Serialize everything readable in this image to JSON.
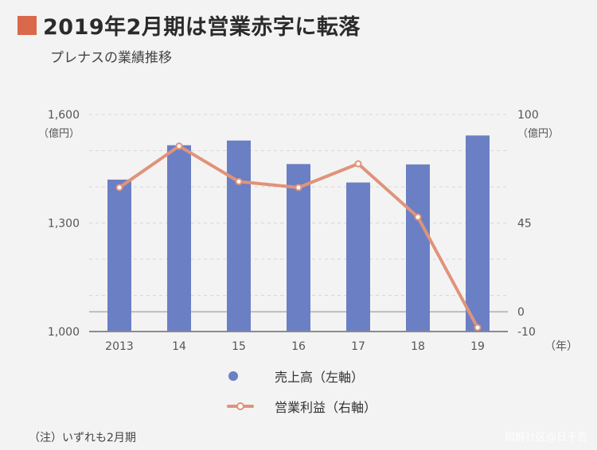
{
  "header": {
    "title": "2019年2月期は営業赤字に転落",
    "subtitle": "プレナスの業績推移",
    "accent_color": "#d9694a"
  },
  "note": "（注）いずれも2月期",
  "credit": "図解社区@日千百",
  "colors": {
    "bar": "#6b7fc4",
    "line": "#e0937a",
    "grid": "#d7d7d7",
    "zero_line": "#bdbdbd"
  },
  "chart_data": {
    "type": "bar+line",
    "categories": [
      "2013",
      "14",
      "15",
      "16",
      "17",
      "18",
      "19"
    ],
    "x_unit": "（年）",
    "series": [
      {
        "name": "売上高（左軸）",
        "axis": "left",
        "kind": "bar",
        "values": [
          1420,
          1515,
          1528,
          1463,
          1412,
          1462,
          1542
        ]
      },
      {
        "name": "営業利益（右軸）",
        "axis": "right",
        "kind": "line",
        "values": [
          63,
          84,
          66,
          63,
          75,
          48,
          -8
        ]
      }
    ],
    "left_axis": {
      "unit": "（億円）",
      "ylim": [
        1000,
        1600
      ],
      "ticks": [
        "1,000",
        "1,300",
        "1,600"
      ],
      "tick_values": [
        1000,
        1300,
        1600
      ]
    },
    "right_axis": {
      "unit": "（億円）",
      "ylim": [
        -10,
        100
      ],
      "ticks": [
        "-10",
        "0",
        "45",
        "100"
      ],
      "tick_values": [
        -10,
        0,
        45,
        100
      ]
    }
  }
}
